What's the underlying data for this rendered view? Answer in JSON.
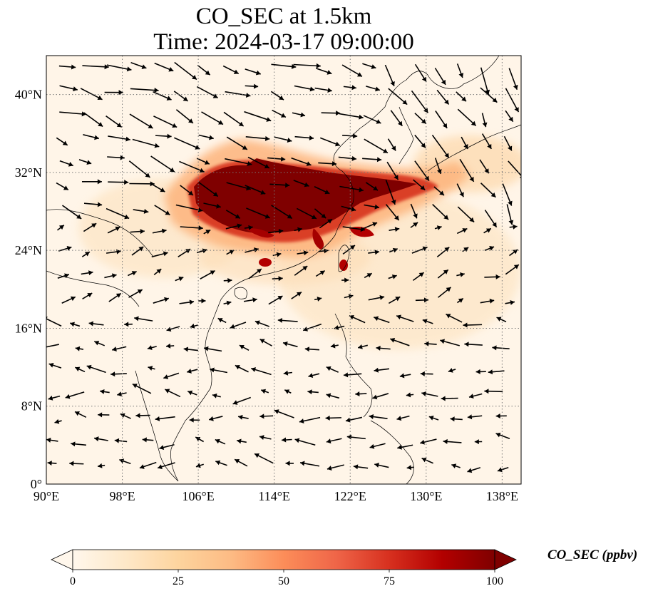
{
  "title": {
    "line1": "CO_SEC at 1.5km",
    "line2": "Time: 2024-03-17 09:00:00"
  },
  "map": {
    "type": "contour-map",
    "variable": "CO_SEC",
    "level": "1.5km",
    "extent": {
      "lon_min": 90,
      "lon_max": 140,
      "lat_min": 0,
      "lat_max": 44
    },
    "lat_ticks": [
      "0°",
      "8°N",
      "16°N",
      "24°N",
      "32°N",
      "40°N"
    ],
    "lat_values": [
      0,
      8,
      16,
      24,
      32,
      40
    ],
    "lon_ticks": [
      "90°E",
      "98°E",
      "106°E",
      "114°E",
      "122°E",
      "130°E",
      "138°E"
    ],
    "lon_values": [
      90,
      98,
      106,
      114,
      122,
      130,
      138
    ],
    "gridlines": true,
    "wind_vectors": true
  },
  "colorbar": {
    "label": "CO_SEC (ppbv)",
    "ticks": [
      "0",
      "25",
      "50",
      "75",
      "100"
    ],
    "tick_values": [
      0,
      25,
      50,
      75,
      100
    ],
    "range": [
      0,
      100
    ],
    "extend": "both",
    "colormap": [
      "#fff7ec",
      "#fee8c8",
      "#fdd49e",
      "#fdbb84",
      "#fc8d59",
      "#ef6548",
      "#d7301f",
      "#b30000",
      "#7f0000"
    ]
  }
}
